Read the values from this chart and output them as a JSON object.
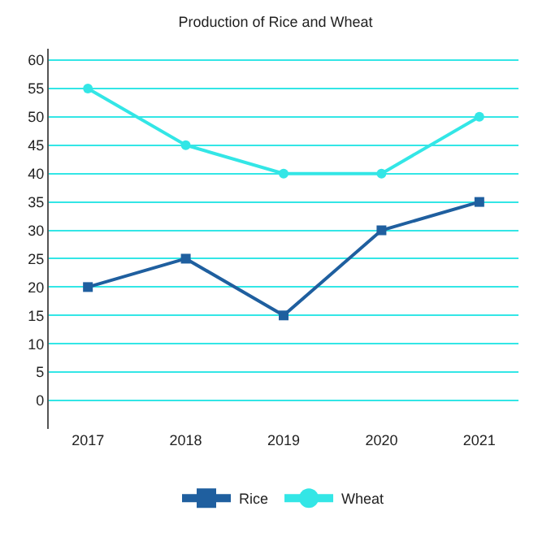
{
  "chart_data": {
    "type": "line",
    "title": "Production of Rice and Wheat",
    "categories": [
      "2017",
      "2018",
      "2019",
      "2020",
      "2021"
    ],
    "series": [
      {
        "name": "Rice",
        "color": "#1f5f9f",
        "values": [
          20,
          25,
          15,
          30,
          35
        ],
        "marker": "square"
      },
      {
        "name": "Wheat",
        "color": "#33e6e6",
        "values": [
          55,
          45,
          40,
          40,
          50
        ],
        "marker": "circle"
      }
    ],
    "ylim": [
      -5,
      62
    ],
    "yticks": [
      0,
      5,
      10,
      15,
      20,
      25,
      30,
      35,
      40,
      45,
      50,
      55,
      60
    ],
    "grid": "y",
    "legend": "bottom",
    "line_style": "solid"
  }
}
